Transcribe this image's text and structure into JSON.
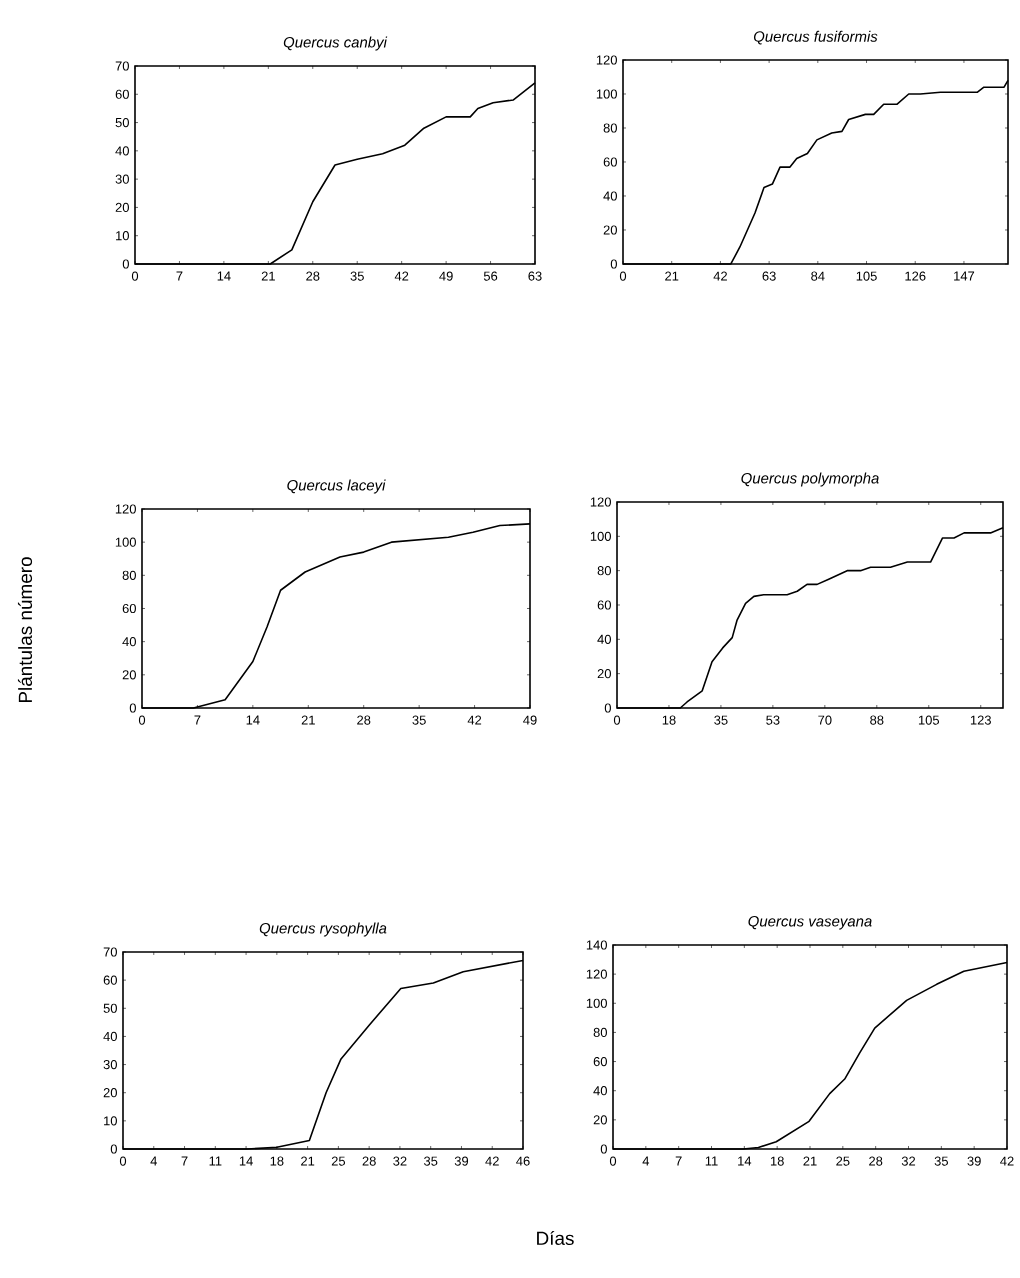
{
  "chart_data": [
    {
      "type": "line",
      "title": "Quercus canbyi",
      "color": "#000000",
      "x": [
        0,
        21.3,
        24.7,
        28,
        31.5,
        35,
        39,
        42.5,
        45.5,
        49,
        52.8,
        54,
        56.4,
        59.6,
        63
      ],
      "values": [
        0,
        0,
        5,
        22,
        35,
        37,
        39,
        42,
        48,
        52,
        52,
        55,
        57,
        58,
        64
      ],
      "xlim": [
        0,
        63
      ],
      "xticks": [
        0,
        7,
        14,
        21,
        28,
        35,
        42,
        49,
        56,
        63
      ],
      "ylim": [
        0,
        70
      ],
      "yticks": [
        0,
        10,
        20,
        30,
        40,
        50,
        60,
        70
      ]
    },
    {
      "type": "line",
      "title": "Quercus fusiformis",
      "color": "#000000",
      "x": [
        0,
        46.5,
        50.4,
        56.9,
        60.8,
        64.4,
        67.7,
        72,
        74.9,
        79.5,
        83.6,
        90,
        94.4,
        97.3,
        104.5,
        108.1,
        112.4,
        118.2,
        123.2,
        128.2,
        136.9,
        152.7,
        155.6,
        164.3,
        166
      ],
      "values": [
        0,
        0,
        10,
        30,
        45,
        47,
        57,
        57,
        62,
        65,
        73,
        77,
        78,
        85,
        88,
        88,
        94,
        94,
        100,
        100,
        101,
        101,
        104,
        104,
        108
      ],
      "xlim": [
        0,
        166
      ],
      "xticks": [
        0,
        21,
        42,
        63,
        84,
        105,
        126,
        147
      ],
      "ylim": [
        0,
        120
      ],
      "yticks": [
        0,
        20,
        40,
        60,
        80,
        100,
        120
      ]
    },
    {
      "type": "line",
      "title": "Quercus laceyi",
      "ylabel": "Plántulas número",
      "color": "#000000",
      "x": [
        0,
        6.5,
        10.5,
        14,
        15.8,
        17.5,
        20.6,
        25,
        28,
        31.5,
        38.7,
        41.8,
        45.2,
        49
      ],
      "values": [
        0,
        0,
        5,
        28,
        49,
        71,
        82,
        91,
        94,
        100,
        103,
        106,
        110,
        111
      ],
      "xlim": [
        0,
        49
      ],
      "xticks": [
        0,
        7,
        14,
        21,
        28,
        35,
        42,
        49
      ],
      "ylim": [
        0,
        120
      ],
      "yticks": [
        0,
        20,
        40,
        60,
        80,
        100,
        120
      ]
    },
    {
      "type": "line",
      "title": "Quercus polymorpha",
      "color": "#000000",
      "x": [
        0,
        21.3,
        23.6,
        28.7,
        32,
        35.6,
        38.8,
        40.4,
        43.3,
        46.1,
        49.4,
        57.3,
        60.7,
        64,
        67.4,
        71.3,
        77.5,
        82,
        85.4,
        92.1,
        97.8,
        102.2,
        105.6,
        109.6,
        113.5,
        116.9,
        125.8,
        130
      ],
      "values": [
        0,
        0,
        3.5,
        10,
        27,
        35,
        41,
        51,
        61,
        65,
        66,
        66,
        68,
        72,
        72,
        75,
        80,
        80,
        82,
        82,
        85,
        85,
        85,
        99,
        99,
        102,
        102,
        105
      ],
      "xlim": [
        0,
        130
      ],
      "xticks": [
        0,
        {
          "value": 17.5,
          "label": "18"
        },
        35,
        {
          "value": 52.5,
          "label": "53"
        },
        70,
        {
          "value": 87.5,
          "label": "88"
        },
        105,
        {
          "value": 122.5,
          "label": "123"
        }
      ],
      "ylim": [
        0,
        120
      ],
      "yticks": [
        0,
        20,
        40,
        60,
        80,
        100,
        120
      ]
    },
    {
      "type": "line",
      "title": "Quercus rysophylla",
      "xlabel": "Días",
      "color": "#000000",
      "x": [
        0,
        14.1,
        17.5,
        21.2,
        23.1,
        24.8,
        28,
        31.6,
        35.3,
        38.7,
        45.5
      ],
      "values": [
        0,
        0,
        0.6,
        3,
        20,
        32,
        44,
        57,
        59,
        63,
        67
      ],
      "xlim": [
        0,
        45.5
      ],
      "xticks": [
        0,
        {
          "value": 3.5,
          "label": "4"
        },
        7,
        {
          "value": 10.5,
          "label": "11"
        },
        14,
        {
          "value": 17.5,
          "label": "18"
        },
        21,
        {
          "value": 24.5,
          "label": "25"
        },
        28,
        {
          "value": 31.5,
          "label": "32"
        },
        35,
        {
          "value": 38.5,
          "label": "39"
        },
        42,
        {
          "value": 45.5,
          "label": "46"
        }
      ],
      "ylim": [
        0,
        70
      ],
      "yticks": [
        0,
        10,
        20,
        30,
        40,
        50,
        60,
        70
      ]
    },
    {
      "type": "line",
      "title": "Quercus vaseyana",
      "color": "#000000",
      "x": [
        0,
        13.9,
        15.5,
        17.4,
        20.9,
        23.1,
        24.7,
        26.3,
        27.9,
        31.3,
        34.5,
        37.4,
        42
      ],
      "values": [
        0,
        0,
        1,
        5,
        19,
        38,
        48,
        66,
        83,
        102,
        113,
        122,
        128
      ],
      "xlim": [
        0,
        42
      ],
      "xticks": [
        0,
        {
          "value": 3.5,
          "label": "4"
        },
        7,
        {
          "value": 10.5,
          "label": "11"
        },
        14,
        {
          "value": 17.5,
          "label": "18"
        },
        21,
        {
          "value": 24.5,
          "label": "25"
        },
        28,
        {
          "value": 31.5,
          "label": "32"
        },
        35,
        {
          "value": 38.5,
          "label": "39"
        },
        42
      ],
      "ylim": [
        0,
        140
      ],
      "yticks": [
        0,
        20,
        40,
        60,
        80,
        100,
        120,
        140
      ]
    }
  ]
}
